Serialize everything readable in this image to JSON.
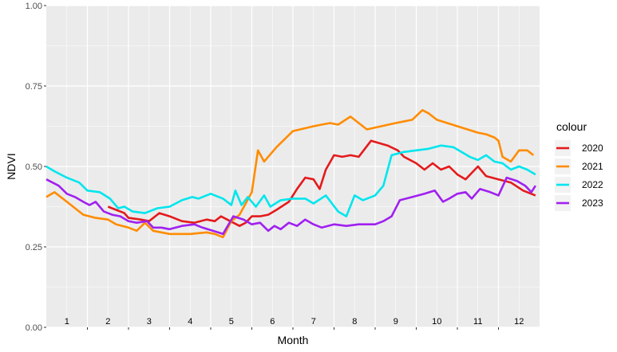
{
  "chart_data": {
    "type": "line",
    "xlabel": "Month",
    "ylabel": "NDVI",
    "ylim": [
      0,
      1
    ],
    "xlim": [
      0,
      12
    ],
    "y_ticks": [
      "0.00",
      "0.25",
      "0.50",
      "0.75",
      "1.00"
    ],
    "month_labels": [
      "1",
      "2",
      "3",
      "4",
      "5",
      "6",
      "7",
      "8",
      "9",
      "10",
      "11",
      "12"
    ],
    "grid": true,
    "legend_title": "colour",
    "legend_position": "right",
    "series": [
      {
        "name": "2020",
        "color": "#e41a1c",
        "points": [
          [
            1.5,
            0.375
          ],
          [
            1.9,
            0.355
          ],
          [
            2.0,
            0.34
          ],
          [
            2.3,
            0.335
          ],
          [
            2.5,
            0.33
          ],
          [
            2.75,
            0.355
          ],
          [
            3.0,
            0.345
          ],
          [
            3.3,
            0.33
          ],
          [
            3.6,
            0.325
          ],
          [
            3.9,
            0.335
          ],
          [
            4.1,
            0.33
          ],
          [
            4.25,
            0.345
          ],
          [
            4.4,
            0.335
          ],
          [
            4.7,
            0.315
          ],
          [
            4.85,
            0.325
          ],
          [
            5.0,
            0.345
          ],
          [
            5.2,
            0.345
          ],
          [
            5.4,
            0.35
          ],
          [
            5.6,
            0.365
          ],
          [
            5.9,
            0.39
          ],
          [
            6.1,
            0.43
          ],
          [
            6.3,
            0.465
          ],
          [
            6.5,
            0.46
          ],
          [
            6.65,
            0.43
          ],
          [
            6.8,
            0.49
          ],
          [
            7.0,
            0.535
          ],
          [
            7.2,
            0.53
          ],
          [
            7.4,
            0.535
          ],
          [
            7.6,
            0.53
          ],
          [
            7.9,
            0.58
          ],
          [
            8.3,
            0.565
          ],
          [
            8.55,
            0.55
          ],
          [
            8.7,
            0.53
          ],
          [
            9.0,
            0.51
          ],
          [
            9.2,
            0.49
          ],
          [
            9.4,
            0.51
          ],
          [
            9.6,
            0.49
          ],
          [
            9.8,
            0.5
          ],
          [
            10.0,
            0.475
          ],
          [
            10.2,
            0.46
          ],
          [
            10.35,
            0.48
          ],
          [
            10.5,
            0.5
          ],
          [
            10.7,
            0.47
          ],
          [
            11.0,
            0.46
          ],
          [
            11.3,
            0.45
          ],
          [
            11.6,
            0.425
          ],
          [
            11.9,
            0.41
          ]
        ]
      },
      {
        "name": "2021",
        "color": "#ff8c00",
        "points": [
          [
            0.0,
            0.405
          ],
          [
            0.2,
            0.42
          ],
          [
            0.5,
            0.39
          ],
          [
            0.9,
            0.35
          ],
          [
            1.2,
            0.34
          ],
          [
            1.5,
            0.335
          ],
          [
            1.7,
            0.32
          ],
          [
            2.0,
            0.31
          ],
          [
            2.2,
            0.3
          ],
          [
            2.4,
            0.325
          ],
          [
            2.6,
            0.3
          ],
          [
            2.8,
            0.295
          ],
          [
            3.0,
            0.29
          ],
          [
            3.5,
            0.29
          ],
          [
            3.9,
            0.295
          ],
          [
            4.1,
            0.29
          ],
          [
            4.3,
            0.28
          ],
          [
            4.5,
            0.33
          ],
          [
            4.7,
            0.35
          ],
          [
            5.0,
            0.42
          ],
          [
            5.15,
            0.55
          ],
          [
            5.3,
            0.515
          ],
          [
            5.6,
            0.56
          ],
          [
            6.0,
            0.61
          ],
          [
            6.5,
            0.625
          ],
          [
            6.9,
            0.635
          ],
          [
            7.1,
            0.63
          ],
          [
            7.4,
            0.655
          ],
          [
            7.6,
            0.635
          ],
          [
            7.8,
            0.615
          ],
          [
            8.5,
            0.635
          ],
          [
            8.9,
            0.645
          ],
          [
            9.15,
            0.675
          ],
          [
            9.3,
            0.665
          ],
          [
            9.5,
            0.645
          ],
          [
            10.0,
            0.625
          ],
          [
            10.5,
            0.605
          ],
          [
            10.7,
            0.6
          ],
          [
            10.9,
            0.59
          ],
          [
            11.0,
            0.58
          ],
          [
            11.1,
            0.53
          ],
          [
            11.3,
            0.515
          ],
          [
            11.5,
            0.55
          ],
          [
            11.7,
            0.55
          ],
          [
            11.85,
            0.535
          ]
        ]
      },
      {
        "name": "2022",
        "color": "#00e5ee",
        "points": [
          [
            0.0,
            0.5
          ],
          [
            0.2,
            0.485
          ],
          [
            0.5,
            0.465
          ],
          [
            0.8,
            0.45
          ],
          [
            1.0,
            0.425
          ],
          [
            1.3,
            0.42
          ],
          [
            1.55,
            0.4
          ],
          [
            1.75,
            0.37
          ],
          [
            1.9,
            0.375
          ],
          [
            2.1,
            0.36
          ],
          [
            2.4,
            0.355
          ],
          [
            2.7,
            0.37
          ],
          [
            3.0,
            0.375
          ],
          [
            3.3,
            0.395
          ],
          [
            3.55,
            0.405
          ],
          [
            3.7,
            0.4
          ],
          [
            4.0,
            0.415
          ],
          [
            4.3,
            0.4
          ],
          [
            4.5,
            0.38
          ],
          [
            4.6,
            0.425
          ],
          [
            4.75,
            0.38
          ],
          [
            4.9,
            0.405
          ],
          [
            5.1,
            0.375
          ],
          [
            5.3,
            0.41
          ],
          [
            5.45,
            0.375
          ],
          [
            5.7,
            0.395
          ],
          [
            6.0,
            0.4
          ],
          [
            6.3,
            0.4
          ],
          [
            6.5,
            0.385
          ],
          [
            6.8,
            0.41
          ],
          [
            7.1,
            0.36
          ],
          [
            7.3,
            0.345
          ],
          [
            7.5,
            0.41
          ],
          [
            7.7,
            0.395
          ],
          [
            8.0,
            0.41
          ],
          [
            8.2,
            0.44
          ],
          [
            8.4,
            0.535
          ],
          [
            8.7,
            0.545
          ],
          [
            9.0,
            0.55
          ],
          [
            9.3,
            0.555
          ],
          [
            9.6,
            0.565
          ],
          [
            9.9,
            0.56
          ],
          [
            10.1,
            0.545
          ],
          [
            10.3,
            0.53
          ],
          [
            10.5,
            0.52
          ],
          [
            10.7,
            0.535
          ],
          [
            10.9,
            0.515
          ],
          [
            11.1,
            0.51
          ],
          [
            11.3,
            0.49
          ],
          [
            11.5,
            0.5
          ],
          [
            11.7,
            0.49
          ],
          [
            11.9,
            0.475
          ]
        ]
      },
      {
        "name": "2023",
        "color": "#a020f0",
        "points": [
          [
            0.0,
            0.46
          ],
          [
            0.3,
            0.44
          ],
          [
            0.5,
            0.415
          ],
          [
            0.7,
            0.405
          ],
          [
            0.9,
            0.39
          ],
          [
            1.05,
            0.38
          ],
          [
            1.2,
            0.39
          ],
          [
            1.4,
            0.36
          ],
          [
            1.6,
            0.35
          ],
          [
            1.8,
            0.345
          ],
          [
            2.0,
            0.33
          ],
          [
            2.2,
            0.325
          ],
          [
            2.45,
            0.33
          ],
          [
            2.6,
            0.31
          ],
          [
            2.8,
            0.31
          ],
          [
            3.0,
            0.305
          ],
          [
            3.3,
            0.315
          ],
          [
            3.6,
            0.32
          ],
          [
            3.8,
            0.31
          ],
          [
            4.05,
            0.3
          ],
          [
            4.3,
            0.29
          ],
          [
            4.55,
            0.345
          ],
          [
            4.8,
            0.335
          ],
          [
            5.0,
            0.32
          ],
          [
            5.2,
            0.325
          ],
          [
            5.4,
            0.3
          ],
          [
            5.55,
            0.315
          ],
          [
            5.7,
            0.305
          ],
          [
            5.9,
            0.325
          ],
          [
            6.1,
            0.315
          ],
          [
            6.3,
            0.335
          ],
          [
            6.5,
            0.32
          ],
          [
            6.7,
            0.31
          ],
          [
            7.0,
            0.32
          ],
          [
            7.3,
            0.315
          ],
          [
            7.6,
            0.32
          ],
          [
            8.0,
            0.32
          ],
          [
            8.2,
            0.33
          ],
          [
            8.4,
            0.345
          ],
          [
            8.6,
            0.395
          ],
          [
            8.9,
            0.405
          ],
          [
            9.2,
            0.415
          ],
          [
            9.45,
            0.425
          ],
          [
            9.65,
            0.39
          ],
          [
            9.8,
            0.4
          ],
          [
            10.0,
            0.415
          ],
          [
            10.2,
            0.42
          ],
          [
            10.35,
            0.4
          ],
          [
            10.55,
            0.43
          ],
          [
            10.8,
            0.42
          ],
          [
            11.0,
            0.41
          ],
          [
            11.2,
            0.465
          ],
          [
            11.45,
            0.455
          ],
          [
            11.65,
            0.44
          ],
          [
            11.8,
            0.42
          ],
          [
            11.9,
            0.44
          ]
        ]
      }
    ]
  }
}
